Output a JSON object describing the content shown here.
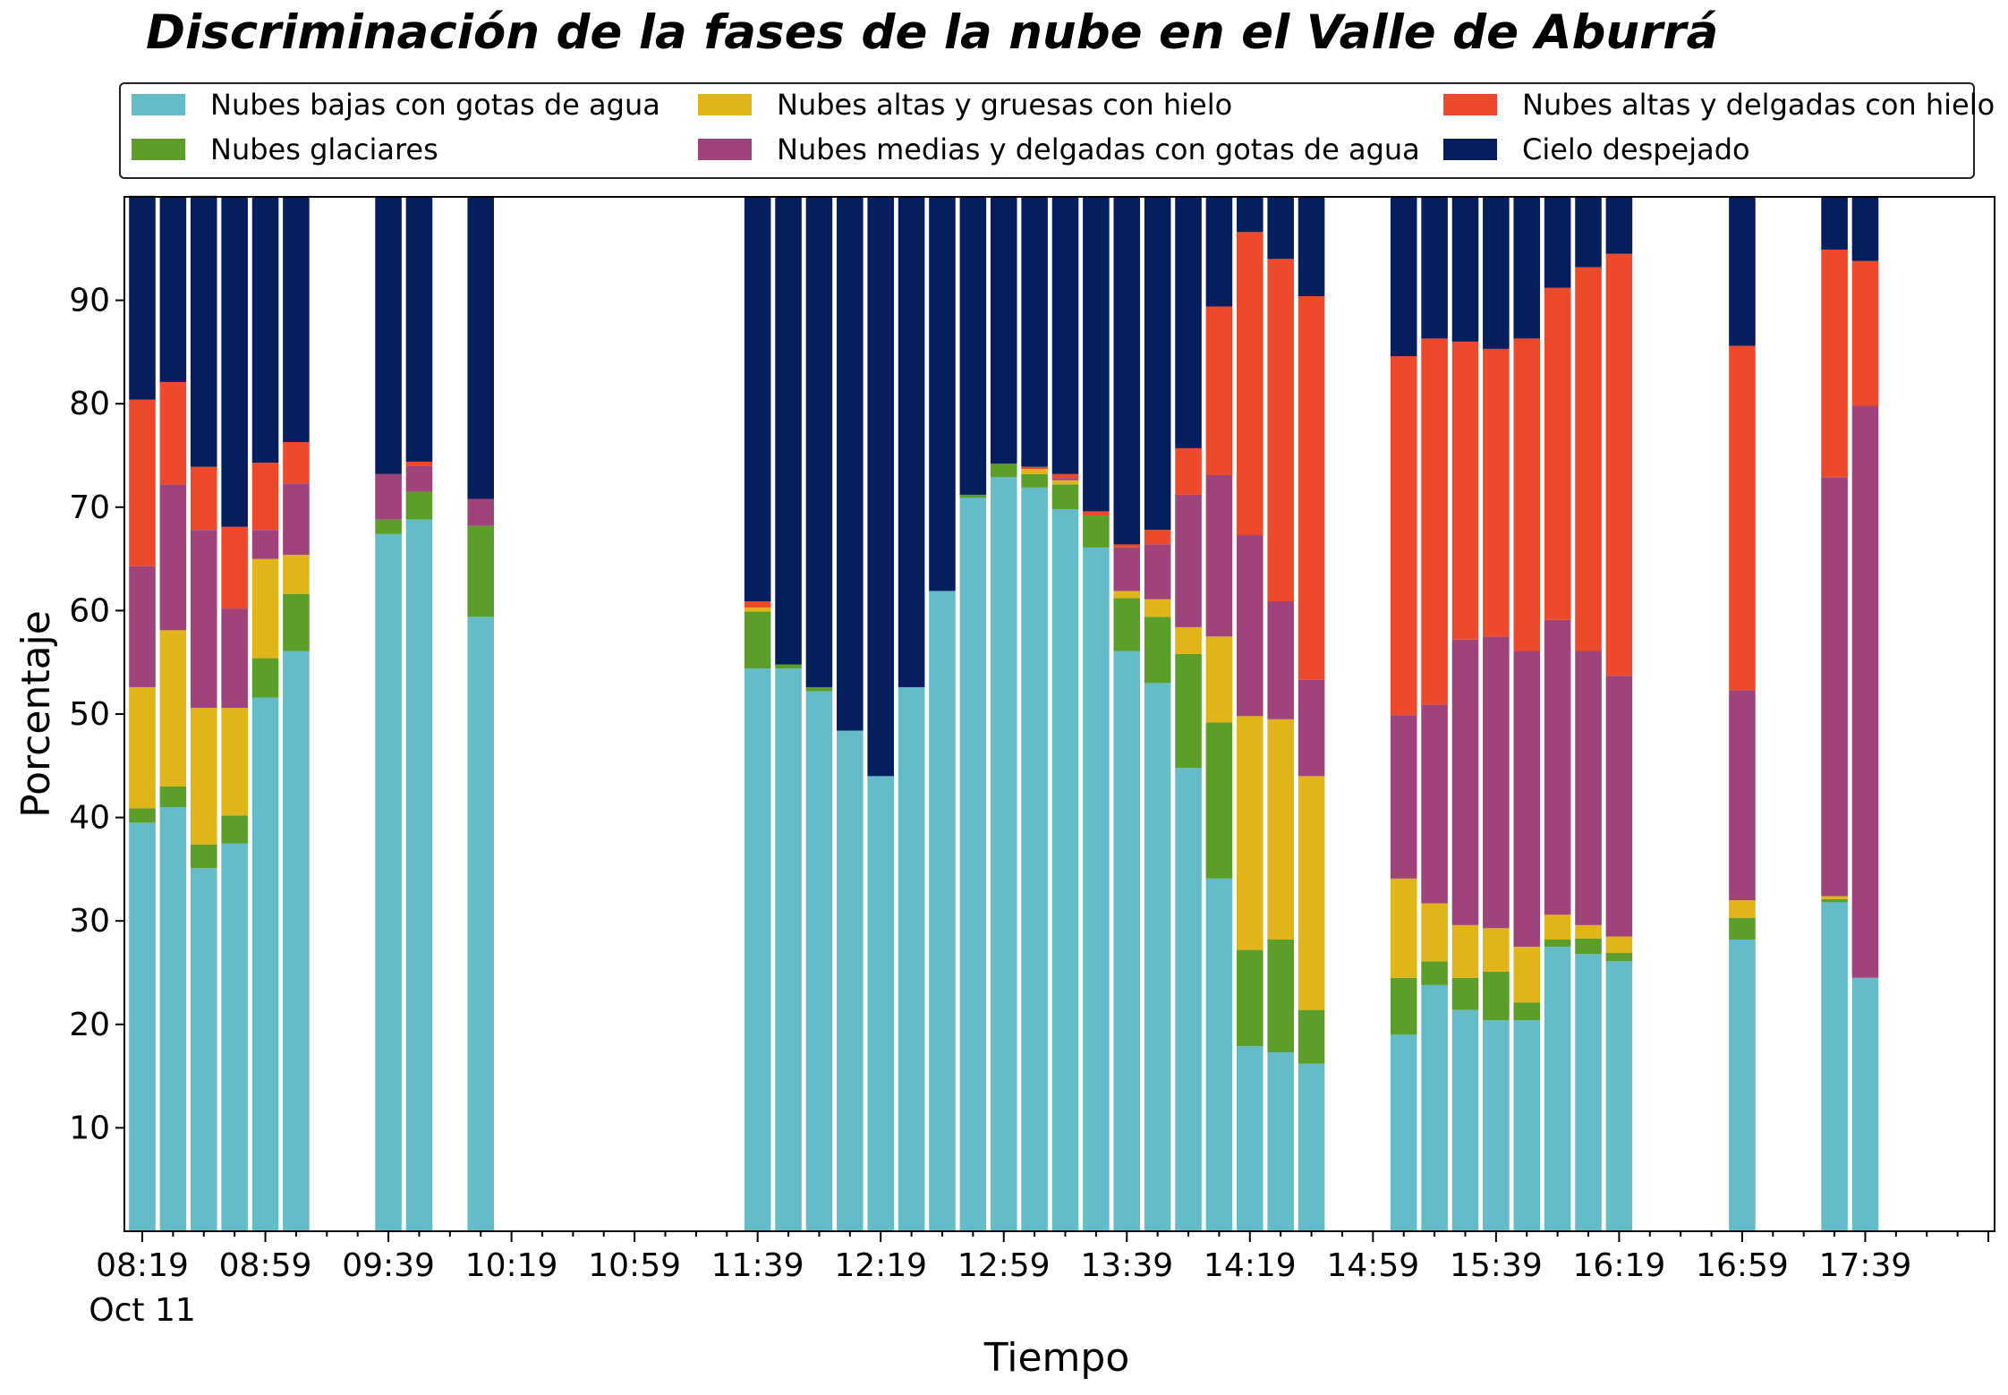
{
  "chart_data": {
    "type": "bar",
    "stacked": true,
    "title": "Discriminación de la fases de la nube en el Valle de Aburrá",
    "xlabel": "Tiempo",
    "ylabel": "Porcentaje",
    "ylim": [
      0,
      100
    ],
    "y_ticks": [
      10,
      20,
      30,
      40,
      50,
      60,
      70,
      80,
      90
    ],
    "x_tick_labels": [
      "08:19",
      "08:59",
      "09:39",
      "10:19",
      "10:59",
      "11:39",
      "12:19",
      "12:59",
      "13:39",
      "14:19",
      "14:59",
      "15:39",
      "16:19",
      "16:59",
      "17:39"
    ],
    "x_date_label": "Oct 11",
    "x_start": "08:19",
    "x_end": "18:19",
    "bar_interval_minutes": 10,
    "grid": false,
    "legend_placement": "top, above plot",
    "series": [
      {
        "name": "Nubes bajas con gotas de agua",
        "color": "#64bcc8"
      },
      {
        "name": "Nubes glaciares",
        "color": "#5b9e2a"
      },
      {
        "name": "Nubes altas y gruesas con hielo",
        "color": "#e1b41a"
      },
      {
        "name": "Nubes medias y delgadas con gotas de agua",
        "color": "#a0437a"
      },
      {
        "name": "Nubes altas y delgadas con hielo",
        "color": "#ec4a2b"
      },
      {
        "name": "Cielo despejado",
        "color": "#041e5e"
      }
    ],
    "bars": [
      {
        "time": "08:19",
        "values": [
          39.5,
          1.4,
          11.7,
          11.7,
          16.1,
          19.7
        ]
      },
      {
        "time": "08:29",
        "values": [
          41.0,
          2.0,
          15.1,
          14.1,
          9.9,
          17.9
        ]
      },
      {
        "time": "08:39",
        "values": [
          35.1,
          2.3,
          13.2,
          17.2,
          6.1,
          26.2
        ]
      },
      {
        "time": "08:49",
        "values": [
          37.5,
          2.7,
          10.4,
          9.6,
          7.9,
          31.9
        ]
      },
      {
        "time": "08:59",
        "values": [
          51.6,
          3.8,
          9.6,
          2.8,
          6.5,
          25.7
        ]
      },
      {
        "time": "09:09",
        "values": [
          56.1,
          5.5,
          3.8,
          6.9,
          4.0,
          23.7
        ]
      },
      {
        "time": "09:39",
        "values": [
          67.4,
          1.4,
          0,
          4.4,
          0,
          26.8
        ]
      },
      {
        "time": "09:49",
        "values": [
          68.8,
          2.7,
          0,
          2.5,
          0.4,
          25.6
        ]
      },
      {
        "time": "10:09",
        "values": [
          59.4,
          8.8,
          0,
          2.6,
          0,
          29.2
        ]
      },
      {
        "time": "11:39",
        "values": [
          54.4,
          5.5,
          0.4,
          0,
          0.6,
          39.1
        ]
      },
      {
        "time": "11:49",
        "values": [
          54.4,
          0.4,
          0,
          0,
          0,
          45.2
        ]
      },
      {
        "time": "11:59",
        "values": [
          52.2,
          0.4,
          0,
          0,
          0,
          47.4
        ]
      },
      {
        "time": "12:09",
        "values": [
          48.4,
          0,
          0,
          0,
          0,
          51.6
        ]
      },
      {
        "time": "12:19",
        "values": [
          44.0,
          0,
          0,
          0,
          0,
          56.0
        ]
      },
      {
        "time": "12:29",
        "values": [
          52.6,
          0,
          0,
          0,
          0,
          47.4
        ]
      },
      {
        "time": "12:39",
        "values": [
          61.9,
          0,
          0,
          0,
          0,
          38.1
        ]
      },
      {
        "time": "12:49",
        "values": [
          70.9,
          0.3,
          0,
          0,
          0,
          28.8
        ]
      },
      {
        "time": "12:59",
        "values": [
          72.9,
          1.3,
          0,
          0,
          0,
          25.8
        ]
      },
      {
        "time": "13:09",
        "values": [
          71.9,
          1.3,
          0.5,
          0,
          0.2,
          26.1
        ]
      },
      {
        "time": "13:19",
        "values": [
          69.8,
          2.4,
          0.4,
          0.2,
          0.4,
          26.8
        ]
      },
      {
        "time": "13:29",
        "values": [
          66.1,
          3.1,
          0,
          0,
          0.4,
          30.4
        ]
      },
      {
        "time": "13:39",
        "values": [
          56.1,
          5.1,
          0.7,
          4.2,
          0.3,
          33.6
        ]
      },
      {
        "time": "13:49",
        "values": [
          53.0,
          6.4,
          1.7,
          5.3,
          1.4,
          32.2
        ]
      },
      {
        "time": "13:59",
        "values": [
          44.8,
          11.0,
          2.6,
          12.8,
          4.5,
          24.3
        ]
      },
      {
        "time": "14:09",
        "values": [
          34.1,
          15.1,
          8.3,
          15.6,
          16.3,
          10.6
        ]
      },
      {
        "time": "14:19",
        "values": [
          17.9,
          9.3,
          22.6,
          17.5,
          29.3,
          3.4
        ]
      },
      {
        "time": "14:29",
        "values": [
          17.3,
          10.9,
          21.3,
          11.4,
          33.1,
          6.0
        ]
      },
      {
        "time": "14:39",
        "values": [
          16.2,
          5.2,
          22.6,
          9.3,
          37.1,
          9.6
        ]
      },
      {
        "time": "15:09",
        "values": [
          19.0,
          5.5,
          9.6,
          15.8,
          34.7,
          15.4
        ]
      },
      {
        "time": "15:19",
        "values": [
          23.8,
          2.3,
          5.6,
          19.2,
          35.4,
          13.7
        ]
      },
      {
        "time": "15:29",
        "values": [
          21.4,
          3.1,
          5.1,
          27.6,
          28.8,
          14.0
        ]
      },
      {
        "time": "15:39",
        "values": [
          20.4,
          4.7,
          4.2,
          28.2,
          27.8,
          14.7
        ]
      },
      {
        "time": "15:49",
        "values": [
          20.4,
          1.7,
          5.4,
          28.6,
          30.2,
          13.7
        ]
      },
      {
        "time": "15:59",
        "values": [
          27.5,
          0.7,
          2.4,
          28.5,
          32.1,
          8.8
        ]
      },
      {
        "time": "16:09",
        "values": [
          26.8,
          1.5,
          1.3,
          26.5,
          37.1,
          6.8
        ]
      },
      {
        "time": "16:19",
        "values": [
          26.1,
          0.8,
          1.6,
          25.2,
          40.8,
          5.5
        ]
      },
      {
        "time": "16:59",
        "values": [
          28.2,
          2.1,
          1.7,
          20.3,
          33.3,
          14.4
        ]
      },
      {
        "time": "17:29",
        "values": [
          31.8,
          0.3,
          0.3,
          40.5,
          22.0,
          5.1
        ]
      },
      {
        "time": "17:39",
        "values": [
          24.5,
          0,
          0,
          55.3,
          14.0,
          6.2
        ]
      }
    ]
  }
}
